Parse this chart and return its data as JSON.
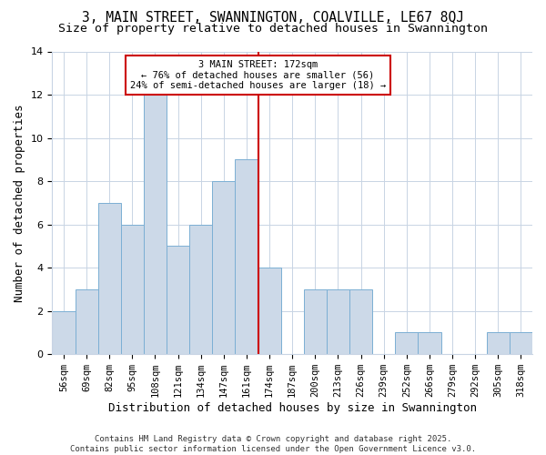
{
  "title": "3, MAIN STREET, SWANNINGTON, COALVILLE, LE67 8QJ",
  "subtitle": "Size of property relative to detached houses in Swannington",
  "xlabel": "Distribution of detached houses by size in Swannington",
  "ylabel": "Number of detached properties",
  "footer_line1": "Contains HM Land Registry data © Crown copyright and database right 2025.",
  "footer_line2": "Contains public sector information licensed under the Open Government Licence v3.0.",
  "bin_labels": [
    "56sqm",
    "69sqm",
    "82sqm",
    "95sqm",
    "108sqm",
    "121sqm",
    "134sqm",
    "147sqm",
    "161sqm",
    "174sqm",
    "187sqm",
    "200sqm",
    "213sqm",
    "226sqm",
    "239sqm",
    "252sqm",
    "266sqm",
    "279sqm",
    "292sqm",
    "305sqm",
    "318sqm"
  ],
  "values": [
    2,
    3,
    7,
    6,
    12,
    5,
    6,
    8,
    9,
    4,
    0,
    3,
    3,
    3,
    0,
    1,
    1,
    0,
    0,
    1,
    1
  ],
  "bar_color": "#ccd9e8",
  "bar_edge_color": "#7bafd4",
  "highlight_color": "#cc0000",
  "annotation_text": "3 MAIN STREET: 172sqm\n← 76% of detached houses are smaller (56)\n24% of semi-detached houses are larger (18) →",
  "ylim": [
    0,
    14
  ],
  "yticks": [
    0,
    2,
    4,
    6,
    8,
    10,
    12,
    14
  ],
  "grid_color": "#c8d4e4",
  "bg_color": "#ffffff",
  "title_fontsize": 10.5,
  "subtitle_fontsize": 9.5,
  "axis_label_fontsize": 9,
  "tick_fontsize": 7.5,
  "footer_fontsize": 6.5,
  "red_line_x": 8.5
}
